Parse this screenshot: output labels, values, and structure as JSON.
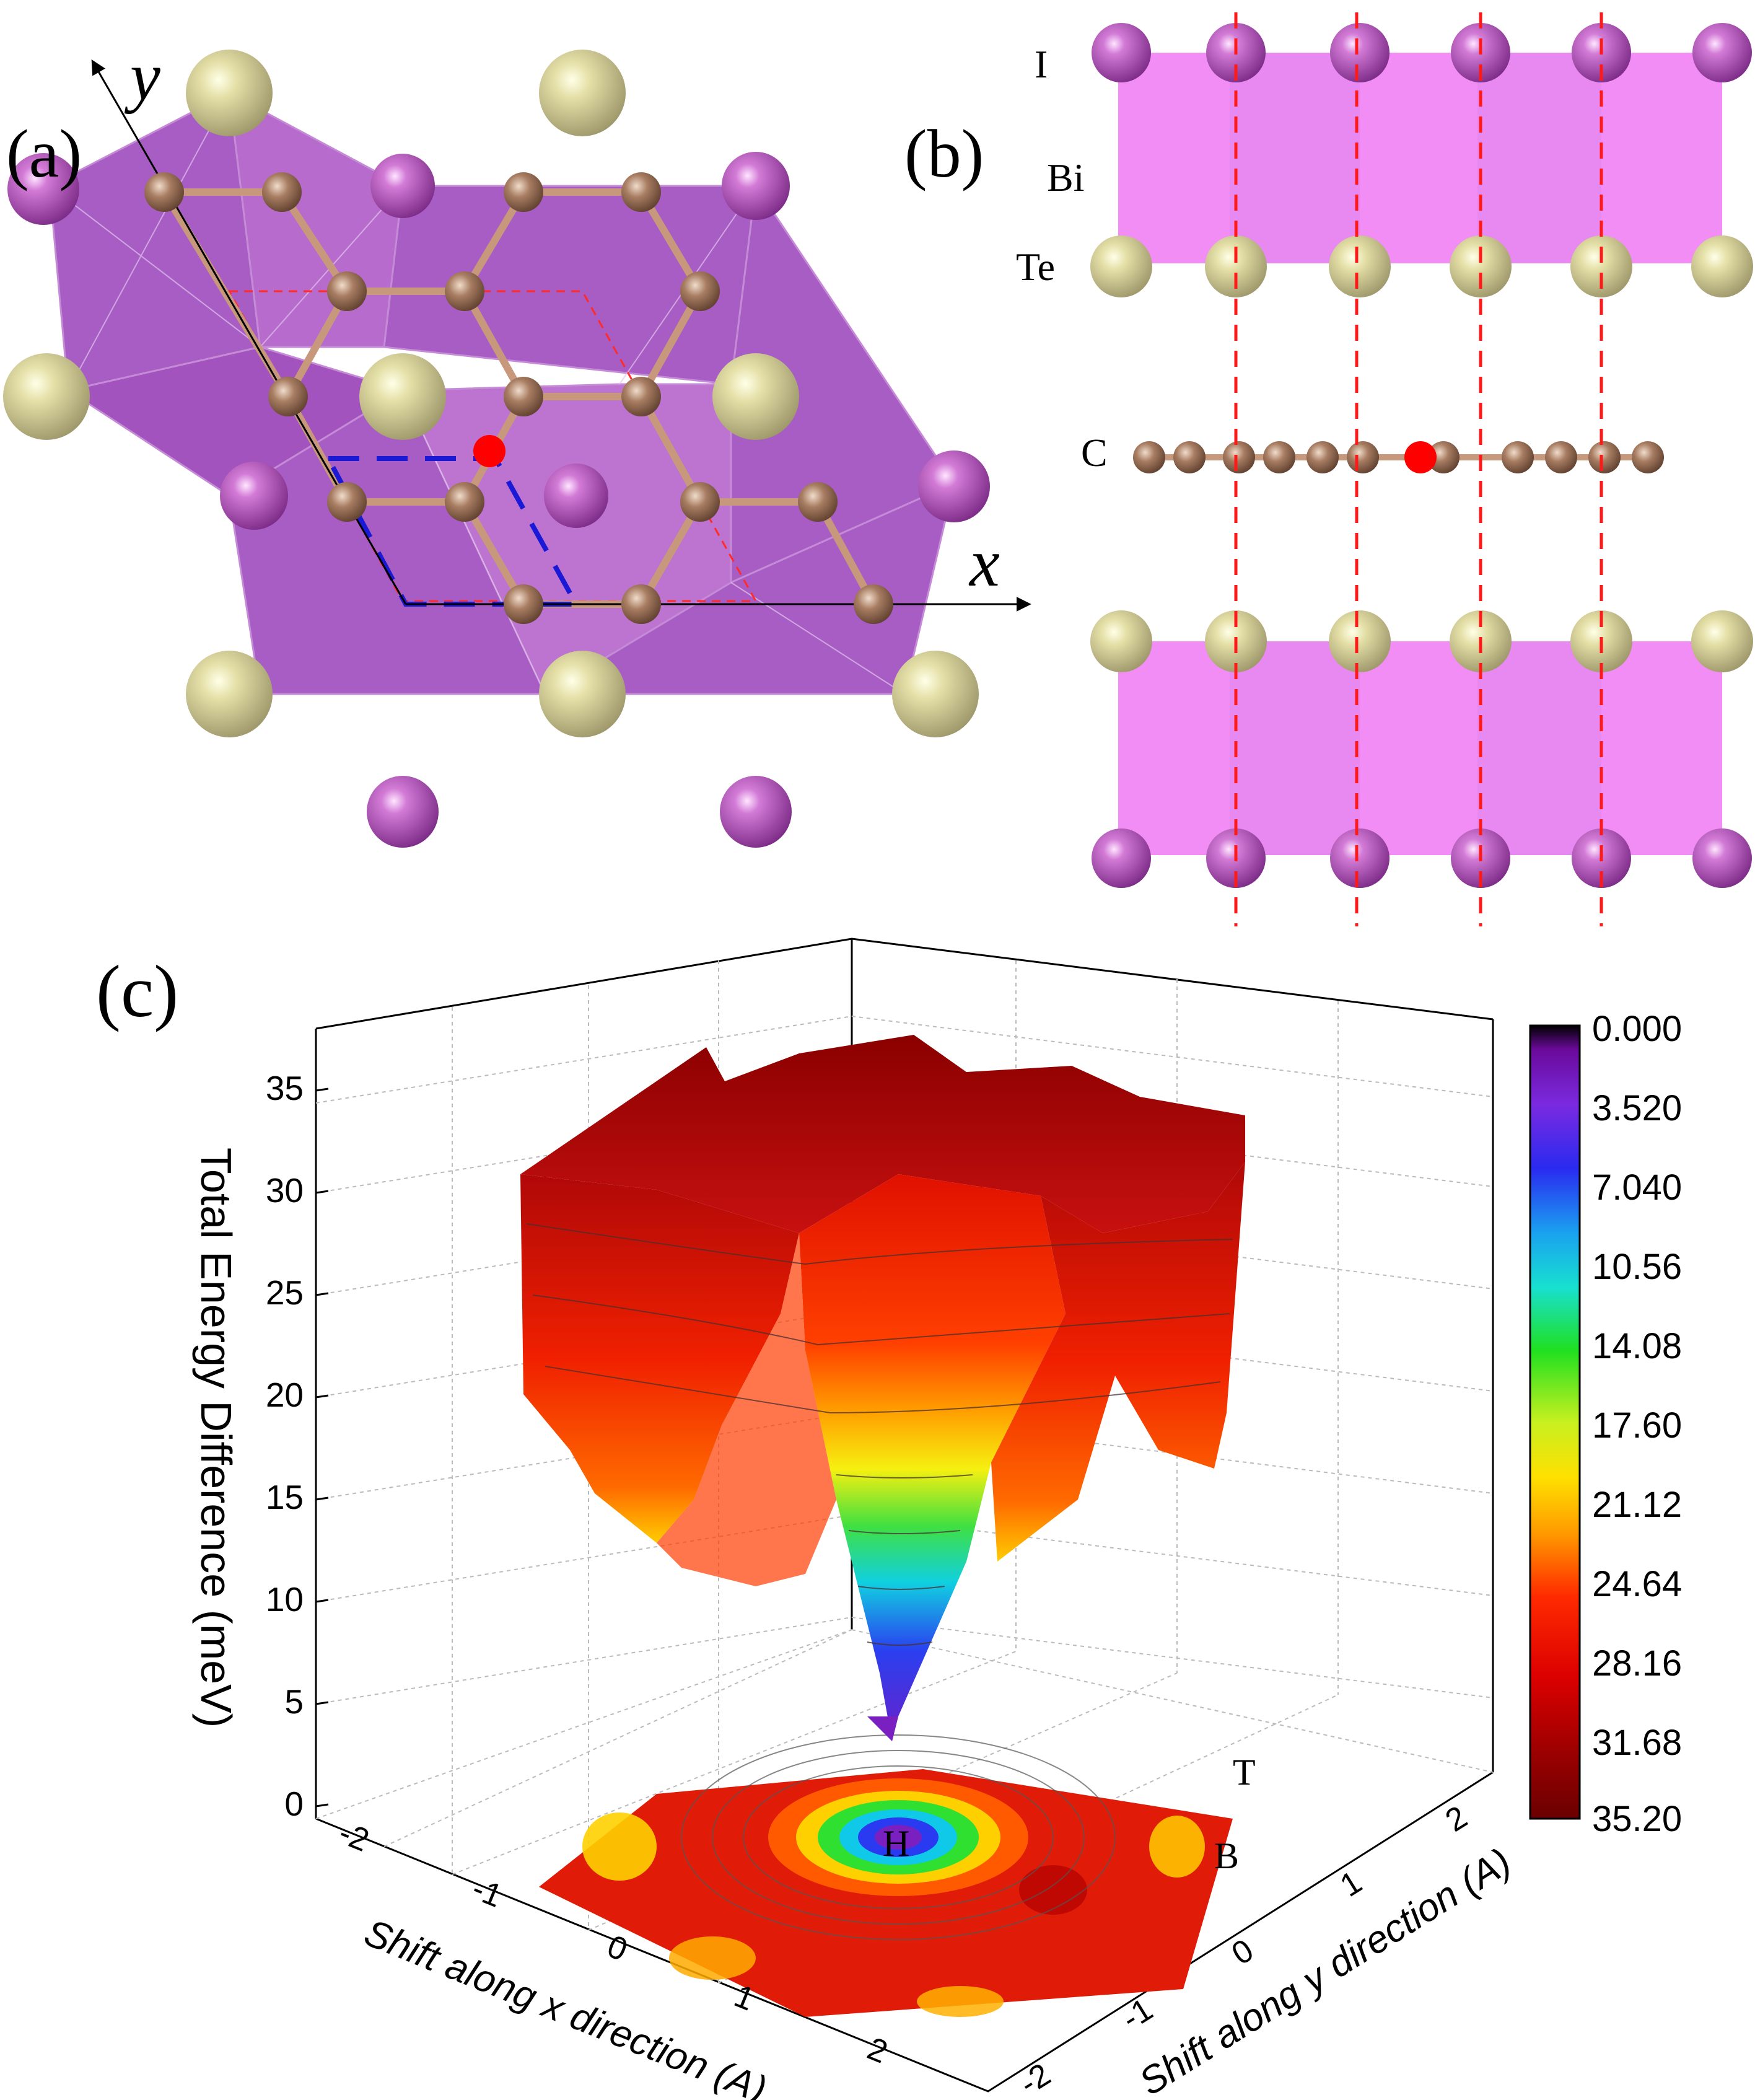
{
  "panel_a": {
    "label": "(a)",
    "axis_x": "x",
    "axis_y": "y"
  },
  "panel_b": {
    "label": "(b)",
    "layer_labels": [
      "I",
      "Bi",
      "Te",
      "C"
    ]
  },
  "panel_c": {
    "label": "(c)",
    "z_axis_title": "Total Energy Difference (meV)",
    "x_axis_title": "Shift along x direction (A)",
    "y_axis_title": "Shift along y direction (A)",
    "z_ticks": [
      "35",
      "30",
      "25",
      "20",
      "15",
      "10",
      "5",
      "0"
    ],
    "x_ticks": [
      "-2",
      "-1",
      "0",
      "1",
      "2"
    ],
    "y_ticks": [
      "2",
      "1",
      "0",
      "-1",
      "-2"
    ],
    "point_labels": {
      "top": "T",
      "bridge": "B",
      "hollow": "H"
    },
    "colorbar_ticks": [
      "0.000",
      "3.520",
      "7.040",
      "10.56",
      "14.08",
      "17.60",
      "21.12",
      "24.64",
      "28.16",
      "31.68",
      "35.20"
    ]
  },
  "colors": {
    "atom_i": "#b24ab6",
    "atom_te": "#d8d49a",
    "atom_c": "#a0765c",
    "octahedra": "#a14fbf",
    "marker": "#ff0000",
    "guide": "#ff0000",
    "cell": "#1a1ad6"
  }
}
